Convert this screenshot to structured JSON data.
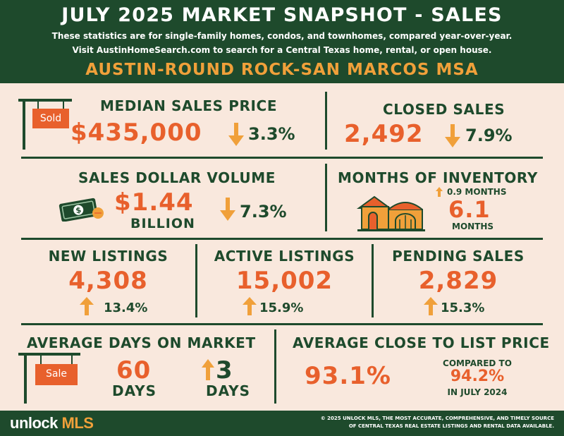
{
  "header": {
    "title": "JULY 2025 MARKET SNAPSHOT - SALES",
    "subtitle_line1": "These statistics are for single-family homes, condos, and townhomes, compared year-over-year.",
    "subtitle_line2": "Visit AustinHomeSearch.com to search for a Central Texas home, rental, or open house.",
    "region": "AUSTIN-ROUND ROCK-SAN MARCOS MSA"
  },
  "median_sales_price": {
    "label": "MEDIAN SALES PRICE",
    "sign_text": "Sold",
    "value": "$435,000",
    "change": "3.3%",
    "direction": "down"
  },
  "closed_sales": {
    "label": "CLOSED SALES",
    "value": "2,492",
    "change": "7.9%",
    "direction": "down"
  },
  "sales_dollar_volume": {
    "label": "SALES DOLLAR VOLUME",
    "value": "$1.44",
    "unit": "BILLION",
    "change": "7.3%",
    "direction": "down"
  },
  "months_of_inventory": {
    "label": "MONTHS OF INVENTORY",
    "change": "0.9 MONTHS",
    "direction": "up",
    "value": "6.1",
    "unit": "MONTHS"
  },
  "new_listings": {
    "label": "NEW LISTINGS",
    "value": "4,308",
    "change": "13.4%",
    "direction": "up"
  },
  "active_listings": {
    "label": "ACTIVE LISTINGS",
    "value": "15,002",
    "change": "15.9%",
    "direction": "up"
  },
  "pending_sales": {
    "label": "PENDING SALES",
    "value": "2,829",
    "change": "15.3%",
    "direction": "up"
  },
  "average_days_on_market": {
    "label": "AVERAGE DAYS ON MARKET",
    "sign_text": "Sale",
    "value": "60",
    "unit": "DAYS",
    "change": "3",
    "change_unit": "DAYS",
    "direction": "up"
  },
  "average_close_to_list": {
    "label": "AVERAGE CLOSE TO LIST PRICE",
    "value": "93.1%",
    "compared_label": "COMPARED TO",
    "compared_value": "94.2%",
    "compared_period": "IN JULY 2024"
  },
  "footer": {
    "logo_part1": "unlock",
    "logo_part2": " MLS",
    "copyright_line1": "© 2025 UNLOCK MLS, THE MOST ACCURATE, COMPREHENSIVE, AND TIMELY SOURCE",
    "copyright_line2": "OF CENTRAL TEXAS REAL ESTATE LISTINGS AND RENTAL DATA AVAILABLE."
  },
  "colors": {
    "green": "#1e4a2c",
    "orange": "#e8602c",
    "gold": "#f0a03a",
    "background": "#f9e8dd"
  },
  "icons": [
    "sold-sign-icon",
    "down-arrow-icon",
    "up-arrow-icon",
    "dollar-bill-icon",
    "coin-icon",
    "house-icon",
    "sale-sign-icon"
  ]
}
